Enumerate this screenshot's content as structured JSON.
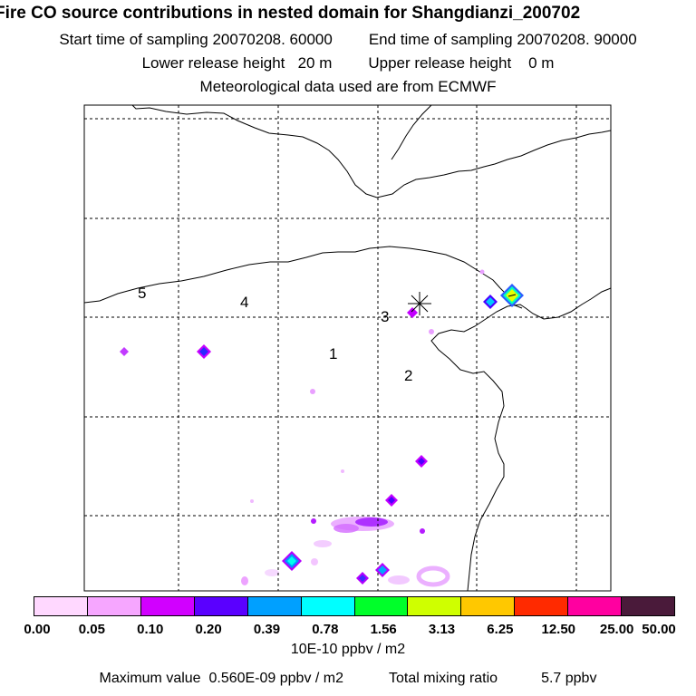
{
  "title": "Fire CO source contributions in nested domain for Shangdianzi_200702",
  "sampling": {
    "start_label": "Start time of sampling",
    "start_value": "20070208. 60000",
    "end_label": "End time of sampling",
    "end_value": "20070208. 90000"
  },
  "release": {
    "lower_label": "Lower release height",
    "lower_value": "20 m",
    "upper_label": "Upper release height",
    "upper_value": "0 m"
  },
  "met_note": "Meteorological data used are from ECMWF",
  "map": {
    "region_labels": [
      "1",
      "2",
      "3",
      "4",
      "5"
    ],
    "receptor_marker": "star-asterisk",
    "colors": {
      "coastline": "#000000",
      "grid": "#000000",
      "frame": "#000000"
    }
  },
  "colorbar": {
    "tick_labels": [
      "0.00",
      "0.05",
      "0.10",
      "0.20",
      "0.39",
      "0.78",
      "1.56",
      "3.13",
      "6.25",
      "12.50",
      "25.00",
      "50.00"
    ],
    "units": "10E-10 ppbv / m2",
    "colors": [
      "#ffd8ff",
      "#f6a6ff",
      "#d100ff",
      "#5a00ff",
      "#00a0ff",
      "#00ffff",
      "#00ff2a",
      "#cfff00",
      "#ffc800",
      "#ff2a00",
      "#ff00a0",
      "#4a1a3a"
    ]
  },
  "footer": {
    "max_label": "Maximum value",
    "max_value": "0.560E-09 ppbv / m2",
    "total_label": "Total mixing ratio",
    "total_value": "5.7 ppbv"
  }
}
